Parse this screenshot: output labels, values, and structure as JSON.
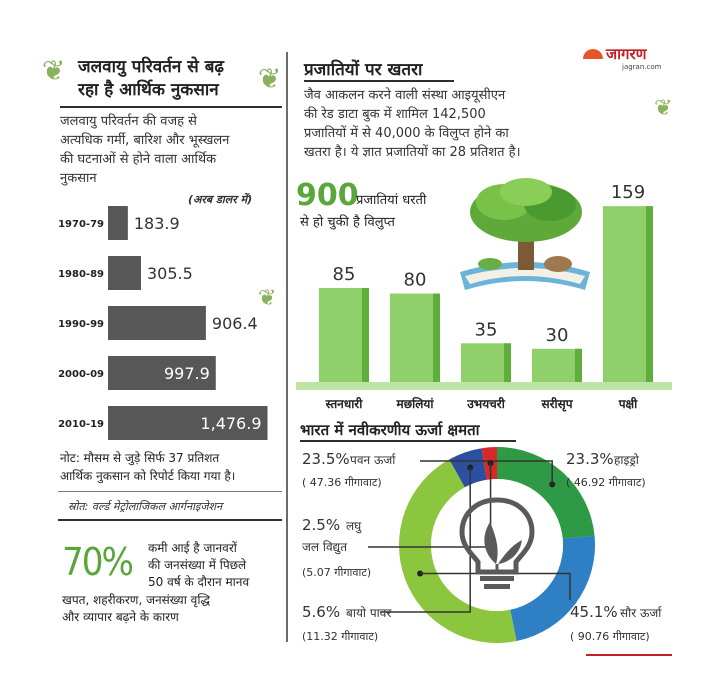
{
  "logo": {
    "name": "जागरण",
    "site": "jagran.com"
  },
  "left": {
    "title_line1": "जलवायु परिवर्तन से बढ़",
    "title_line2": "रहा है आर्थिक नुकसान",
    "desc_line1": "जलवायु परिवर्तन की वजह से",
    "desc_line2": "अत्यधिक गर्मी, बारिश और भूस्खलन",
    "desc_line3": "की घटनाओं से होने वाला आर्थिक",
    "desc_line4": "नुकसान",
    "unit": "(अरब डालर में)",
    "note_line1": "नोट: मौसम से जुड़े सिर्फ 37 प्रतिशत",
    "note_line2": "आर्थिक नुकसान को रिपोर्ट किया गया है।",
    "source": "स्रोत: वर्ल्ड मेट्रोलाजिकल आर्गनाइजेशन",
    "stat_value": "70%",
    "stat_line1": "कमी आई है जानवरों",
    "stat_line2": "की जनसंख्या में पिछले",
    "stat_line3": "50 वर्ष के दौरान मानव",
    "stat_line4": "खपत, शहरीकरण, जनसंख्या वृद्धि",
    "stat_line5": "और व्यापार बढ़ने के कारण"
  },
  "right": {
    "title": "प्रजातियों पर खतरा",
    "desc_line1": "जैव आकलन करने वाली संस्था आइयूसीएन",
    "desc_line2": "की रेड डाटा बुक में शामिल 142,500",
    "desc_line3": "प्रजातियों में से 40,000 के विलुप्त होने का",
    "desc_line4": "खतरा है। ये ज्ञात प्रजातियों का 28 प्रतिशत है।",
    "extinct_number": "900",
    "extinct_line1": "प्रजातियां धरती",
    "extinct_line2": "से हो चुकी है विलुप्त"
  },
  "energy": {
    "title": "भारत में नवीकरणीय ऊर्जा क्षमता"
  },
  "chart_data": [
    {
      "type": "bar",
      "orientation": "horizontal",
      "categories": [
        "1970-79",
        "1980-89",
        "1990-99",
        "2000-09",
        "2010-19"
      ],
      "values": [
        183.9,
        305.5,
        906.4,
        997.9,
        1476.9
      ],
      "value_labels": [
        "183.9",
        "305.5",
        "906.4",
        "997.9",
        "1,476.9"
      ],
      "xlim": [
        0,
        1500
      ],
      "color": "#575757"
    },
    {
      "type": "bar",
      "categories": [
        "स्तनधारी",
        "मछलियां",
        "उभयचरी",
        "सरीसृप",
        "पक्षी"
      ],
      "values": [
        85,
        80,
        35,
        30,
        159
      ],
      "ylim": [
        0,
        170
      ],
      "color": "#8fd06a"
    },
    {
      "type": "pie",
      "donut": true,
      "slices": [
        {
          "name": "पवन ऊर्जा",
          "pct_label": "23.5%",
          "capacity": "( 47.36 गीगावाट)",
          "value": 23.5,
          "color": "#2f9a45"
        },
        {
          "name": "हाइड्रो",
          "pct_label": "23.3%",
          "capacity": "( 46.92 गीगावाट)",
          "value": 23.3,
          "color": "#2e7fc4"
        },
        {
          "name": "सौर ऊर्जा",
          "pct_label": "45.1%",
          "capacity": "( 90.76 गीगावाट)",
          "value": 45.1,
          "color": "#8cc63f"
        },
        {
          "name": "बायो पावर",
          "pct_label": "5.6%",
          "capacity": "(11.32 गीगावाट)",
          "value": 5.6,
          "color": "#2c4fa0"
        },
        {
          "name_line1": "लघु",
          "name_line2": "जल विद्युत",
          "pct_label": "2.5%",
          "capacity": "(5.07 गीगावाट)",
          "value": 2.5,
          "color": "#d62a2a"
        }
      ]
    }
  ]
}
